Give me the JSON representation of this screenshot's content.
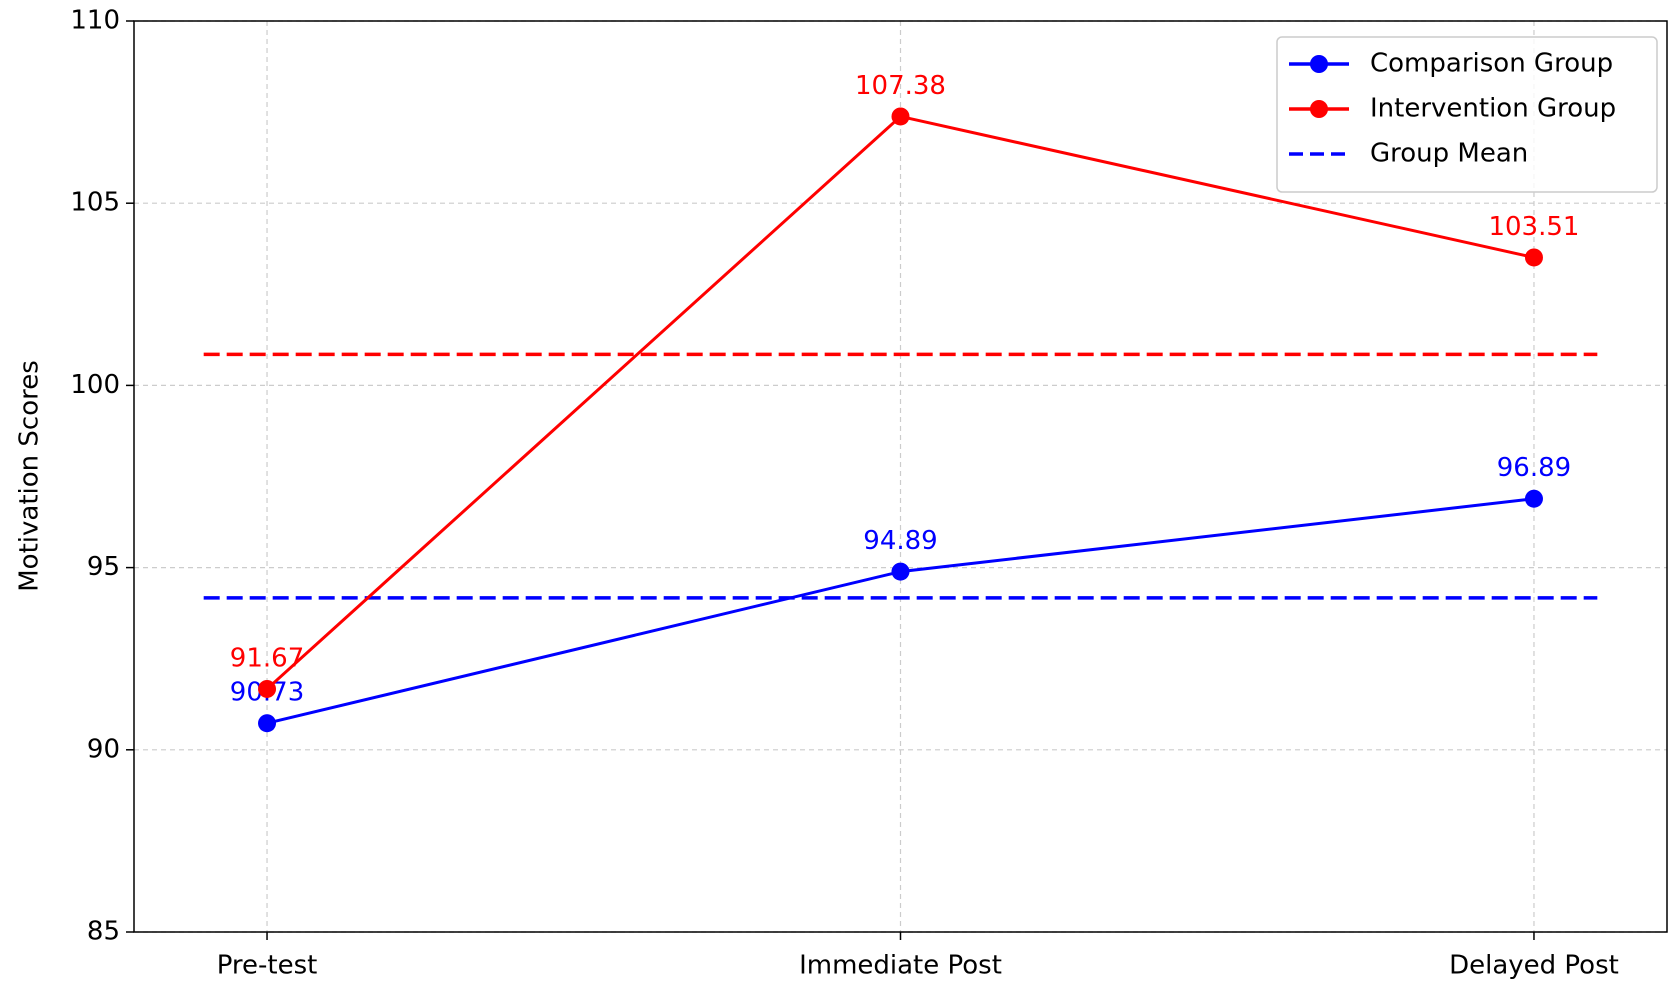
{
  "chart_data": {
    "type": "line",
    "ylabel": "Motivation Scores",
    "categories": [
      "Pre-test",
      "Immediate Post",
      "Delayed Post"
    ],
    "series": [
      {
        "name": "Comparison Group",
        "color": "#0000ff",
        "values": [
          90.73,
          94.89,
          96.89
        ]
      },
      {
        "name": "Intervention Group",
        "color": "#ff0000",
        "values": [
          91.67,
          107.38,
          103.51
        ]
      }
    ],
    "reference_lines": {
      "name": "Group Mean",
      "color": "#0000ff",
      "lines": [
        {
          "color": "#0000ff",
          "value": 94.17
        },
        {
          "color": "#ff0000",
          "value": 100.85
        }
      ]
    },
    "ylim": [
      85,
      110
    ],
    "yticks": [
      85,
      90,
      95,
      100,
      105,
      110
    ],
    "grid": true,
    "legend": "upper right"
  }
}
